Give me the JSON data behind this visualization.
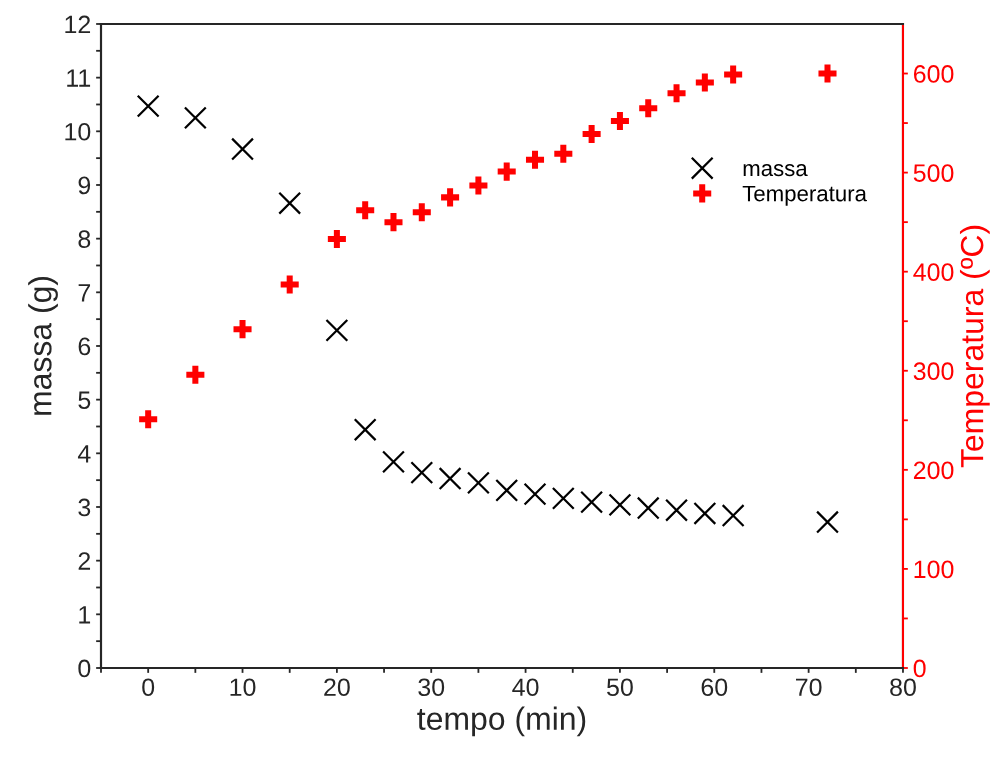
{
  "chart_data": {
    "type": "scatter",
    "xlabel": "tempo (min)",
    "ylabel": "massa (g)",
    "y2label": "Temperatura (ºC)",
    "xlim": [
      -5,
      80
    ],
    "xticks": [
      {
        "value": -5,
        "label": null
      },
      0,
      {
        "value": 5,
        "label": null
      },
      10,
      {
        "value": 15,
        "label": null
      },
      20,
      {
        "value": 25,
        "label": null
      },
      30,
      {
        "value": 35,
        "label": null
      },
      40,
      {
        "value": 45,
        "label": null
      },
      50,
      {
        "value": 55,
        "label": null
      },
      60,
      {
        "value": 65,
        "label": null
      },
      70,
      {
        "value": 75,
        "label": null
      },
      80
    ],
    "ylim": [
      0,
      12
    ],
    "yticks": [
      0,
      {
        "value": 0.5,
        "label": null
      },
      1,
      {
        "value": 1.5,
        "label": null
      },
      2,
      {
        "value": 2.5,
        "label": null
      },
      3,
      {
        "value": 3.5,
        "label": null
      },
      4,
      {
        "value": 4.5,
        "label": null
      },
      5,
      {
        "value": 5.5,
        "label": null
      },
      6,
      {
        "value": 6.5,
        "label": null
      },
      7,
      {
        "value": 7.5,
        "label": null
      },
      8,
      {
        "value": 8.5,
        "label": null
      },
      9,
      {
        "value": 9.5,
        "label": null
      },
      10,
      {
        "value": 10.5,
        "label": null
      },
      11,
      {
        "value": 11.5,
        "label": null
      },
      12
    ],
    "y2lim": [
      0,
      650
    ],
    "y2ticks": [
      0,
      {
        "value": 50,
        "label": null
      },
      100,
      {
        "value": 150,
        "label": null
      },
      200,
      {
        "value": 250,
        "label": null
      },
      300,
      {
        "value": 350,
        "label": null
      },
      400,
      {
        "value": 450,
        "label": null
      },
      500,
      {
        "value": 550,
        "label": null
      },
      600
    ],
    "x": [
      0,
      5,
      10,
      15,
      20,
      23,
      26,
      29,
      32,
      35,
      38,
      41,
      44,
      47,
      50,
      53,
      56,
      59,
      62,
      72
    ],
    "legend": "top right",
    "grid": false,
    "series": [
      {
        "name": "massa",
        "color": "#000000",
        "marker": "x",
        "values": [
          10.47,
          10.25,
          9.67,
          8.66,
          6.29,
          4.44,
          3.84,
          3.64,
          3.53,
          3.45,
          3.31,
          3.24,
          3.16,
          3.09,
          3.04,
          2.98,
          2.94,
          2.88,
          2.84,
          2.72
        ]
      },
      {
        "name": "Temperatura",
        "color": "#ff0000",
        "marker": "cross",
        "axis": "y2",
        "values": [
          251,
          296,
          342,
          387,
          433,
          462,
          450,
          460,
          475,
          487,
          501,
          513,
          519,
          539,
          552,
          565,
          580,
          591,
          599,
          600
        ]
      }
    ]
  }
}
